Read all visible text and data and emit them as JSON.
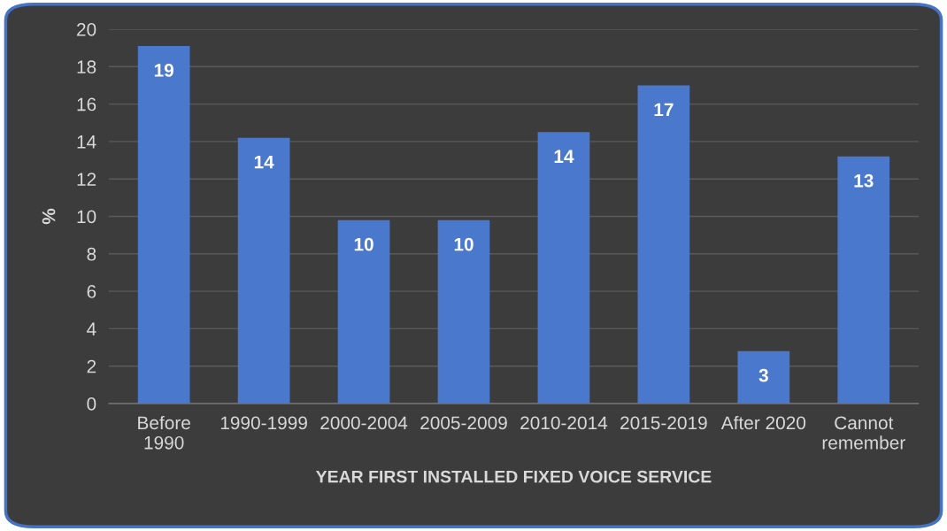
{
  "chart_data": {
    "type": "bar",
    "xlabel": "YEAR FIRST INSTALLED FIXED VOICE SERVICE",
    "ylabel": "%",
    "categories": [
      "Before\n1990",
      "1990-1999",
      "2000-2004",
      "2005-2009",
      "2010-2014",
      "2015-2019",
      "After 2020",
      "Cannot\nremember"
    ],
    "values": [
      19.1,
      14.2,
      9.8,
      9.8,
      14.5,
      17.0,
      2.8,
      13.2
    ],
    "value_labels": [
      "19",
      "14",
      "10",
      "10",
      "14",
      "17",
      "3",
      "13"
    ],
    "color": "#4a78cc",
    "ylim": [
      0,
      20
    ],
    "yticks": [
      0,
      2,
      4,
      6,
      8,
      10,
      12,
      14,
      16,
      18,
      20
    ],
    "grid": "y",
    "legend": false
  }
}
